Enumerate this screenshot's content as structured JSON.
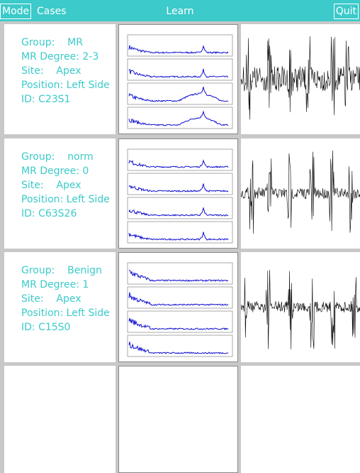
{
  "header": {
    "mode": "Mode",
    "cases": "Cases",
    "title": "Learn",
    "quit": "Quit"
  },
  "cases": [
    {
      "lines": [
        "Group:    MR",
        "MR Degree: 2-3",
        "Site:    Apex",
        "Position: Left Side",
        "ID: C23S1"
      ]
    },
    {
      "lines": [
        "Group:    norm",
        "MR Degree: 0",
        "Site:    Apex",
        "Position: Left Side",
        "ID: C63S26"
      ]
    },
    {
      "lines": [
        "Group:    Benign",
        "MR Degree: 1",
        "Site:    Apex",
        "Position: Left Side",
        "ID: C15S0"
      ]
    }
  ]
}
